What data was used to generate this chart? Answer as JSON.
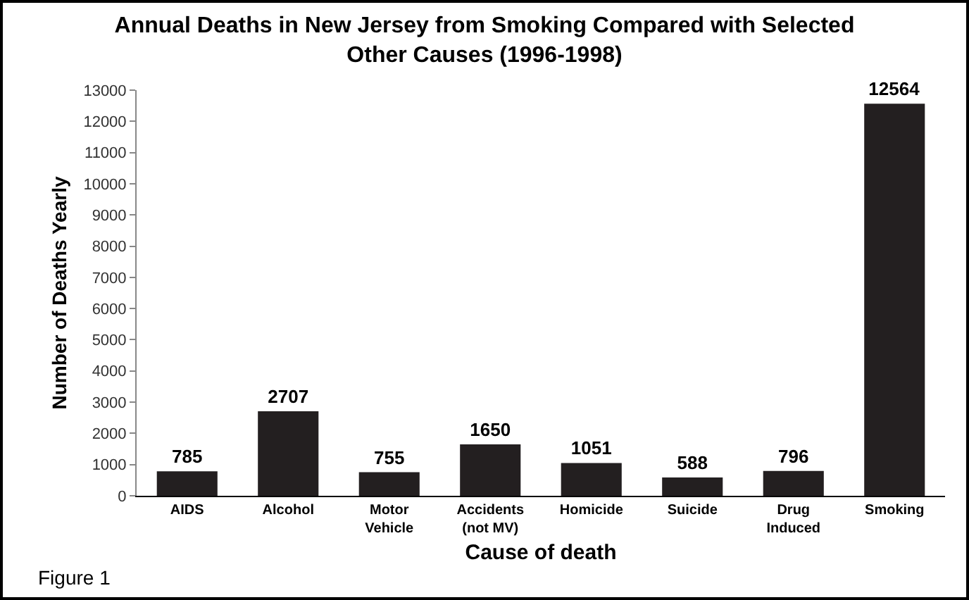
{
  "chart_data": {
    "type": "bar",
    "title": "Annual Deaths in New Jersey from Smoking Compared with Selected Other Causes (1996-1998)",
    "xlabel": "Cause of death",
    "ylabel": "Number of Deaths Yearly",
    "categories": [
      "AIDS",
      "Alcohol",
      "Motor Vehicle",
      "Accidents (not MV)",
      "Homicide",
      "Suicide",
      "Drug Induced",
      "Smoking"
    ],
    "values": [
      785,
      2707,
      755,
      1650,
      1051,
      588,
      796,
      12564
    ],
    "color": "#231f20",
    "data_labels": true,
    "ylim": [
      0,
      13000
    ],
    "yticks": [
      0,
      1000,
      2000,
      3000,
      4000,
      5000,
      6000,
      7000,
      8000,
      9000,
      10000,
      11000,
      12000,
      13000
    ],
    "grid": false,
    "annotations": [
      "Figure 1"
    ]
  }
}
